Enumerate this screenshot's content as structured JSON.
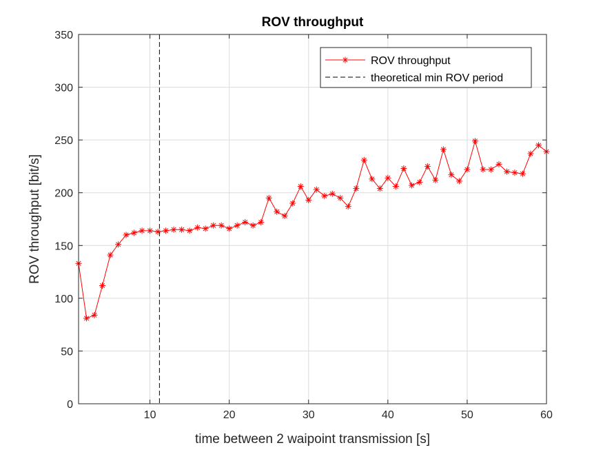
{
  "chart_data": {
    "type": "line",
    "title": "ROV throughput",
    "xlabel": "time between 2 waipoint transmission [s]",
    "ylabel": "ROV throughput [bit/s]",
    "xlim": [
      1,
      60
    ],
    "ylim": [
      0,
      350
    ],
    "xticks": [
      10,
      20,
      30,
      40,
      50,
      60
    ],
    "yticks": [
      0,
      50,
      100,
      150,
      200,
      250,
      300,
      350
    ],
    "grid": true,
    "legend_position": "top-right",
    "series": [
      {
        "name": "ROV throughput",
        "style": "solid-line-asterisk-markers",
        "color": "#ff0000",
        "x": [
          1,
          2,
          3,
          4,
          5,
          6,
          7,
          8,
          9,
          10,
          11,
          12,
          13,
          14,
          15,
          16,
          17,
          18,
          19,
          20,
          21,
          22,
          23,
          24,
          25,
          26,
          27,
          28,
          29,
          30,
          31,
          32,
          33,
          34,
          35,
          36,
          37,
          38,
          39,
          40,
          41,
          42,
          43,
          44,
          45,
          46,
          47,
          48,
          49,
          50,
          51,
          52,
          53,
          54,
          55,
          56,
          57,
          58,
          59,
          60
        ],
        "y": [
          133,
          81,
          84,
          112,
          141,
          151,
          160,
          162,
          164,
          164,
          163,
          164,
          165,
          165,
          164,
          167,
          166,
          169,
          169,
          166,
          169,
          172,
          169,
          172,
          195,
          182,
          178,
          190,
          206,
          193,
          203,
          197,
          199,
          195,
          187,
          204,
          231,
          213,
          204,
          214,
          206,
          223,
          207,
          210,
          225,
          212,
          241,
          217,
          211,
          222,
          249,
          222,
          222,
          227,
          220,
          219,
          218,
          237,
          245,
          239
        ]
      },
      {
        "name": "theoretical min ROV period",
        "style": "dashed-vertical-line",
        "color": "#000000",
        "x_value": 11.2
      }
    ]
  }
}
